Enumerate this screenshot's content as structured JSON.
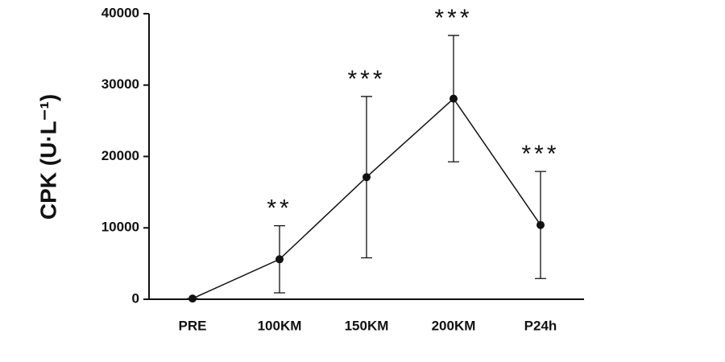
{
  "chart_data": {
    "type": "line",
    "y_label": "CPK (U·L⁻¹)",
    "categories": [
      "PRE",
      "100KM",
      "150KM",
      "200KM",
      "P24h"
    ],
    "values": [
      100,
      5600,
      17100,
      28100,
      10400
    ],
    "errors": [
      0,
      4700,
      11300,
      8850,
      7500
    ],
    "annotations": [
      null,
      "**",
      "***",
      "***",
      "***"
    ],
    "color": "#111111",
    "ylim": [
      0,
      40000
    ],
    "yticks": [
      0,
      10000,
      20000,
      30000,
      40000
    ],
    "grid": false
  }
}
